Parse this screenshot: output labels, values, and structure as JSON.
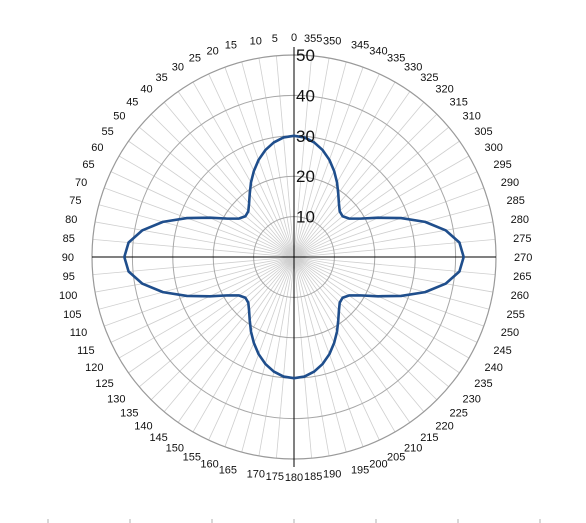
{
  "chart_data": {
    "type": "polar-line",
    "title": "",
    "angle_direction": "counterclockwise",
    "zero_direction": "top",
    "angle_step_deg": 5,
    "angle_labels": [
      "0",
      "5",
      "10",
      "15",
      "20",
      "25",
      "30",
      "35",
      "40",
      "45",
      "50",
      "55",
      "60",
      "65",
      "70",
      "75",
      "80",
      "85",
      "90",
      "95",
      "100",
      "105",
      "110",
      "115",
      "120",
      "125",
      "130",
      "135",
      "140",
      "145",
      "150",
      "155",
      "160",
      "165",
      "170",
      "175",
      "180",
      "185",
      "190",
      "195",
      "200",
      "205",
      "210",
      "215",
      "220",
      "225",
      "230",
      "235",
      "240",
      "245",
      "250",
      "255",
      "260",
      "265",
      "270",
      "275",
      "280",
      "285",
      "290",
      "295",
      "300",
      "305",
      "310",
      "315",
      "320",
      "325",
      "330",
      "335",
      "340",
      "345",
      "350",
      "355"
    ],
    "radial_range": [
      0,
      50
    ],
    "radial_labels": [
      "10",
      "20",
      "30",
      "40",
      "50"
    ],
    "radial_ticks": [
      10,
      20,
      30,
      40,
      50
    ],
    "grid": true,
    "legend": "none",
    "series": [
      {
        "color": "#1f4e8c",
        "theta": [
          0,
          5,
          10,
          15,
          20,
          25,
          30,
          35,
          40,
          45,
          50,
          55,
          60,
          65,
          70,
          75,
          80,
          85,
          90,
          95,
          100,
          105,
          110,
          115,
          120,
          125,
          130,
          135,
          140,
          145,
          150,
          155,
          160,
          165,
          170,
          175,
          180,
          185,
          190,
          195,
          200,
          205,
          210,
          215,
          220,
          225,
          230,
          235,
          240,
          245,
          250,
          255,
          260,
          265,
          270,
          275,
          280,
          285,
          290,
          295,
          300,
          305,
          310,
          315,
          320,
          325,
          330,
          335,
          340,
          345,
          350,
          355,
          360
        ],
        "r": [
          30.0,
          29.7,
          28.8,
          27.4,
          25.6,
          23.5,
          21.3,
          19.1,
          17.3,
          16.0,
          15.7,
          16.6,
          19.0,
          23.0,
          28.2,
          33.6,
          38.1,
          41.1,
          42.0,
          41.1,
          38.1,
          33.6,
          28.2,
          23.0,
          19.0,
          16.6,
          15.7,
          16.0,
          17.3,
          19.1,
          21.3,
          23.5,
          25.6,
          27.4,
          28.8,
          29.7,
          30.0,
          29.7,
          28.8,
          27.4,
          25.6,
          23.5,
          21.3,
          19.1,
          17.3,
          16.0,
          15.7,
          16.6,
          19.0,
          23.0,
          28.2,
          33.6,
          38.1,
          41.1,
          42.0,
          41.1,
          38.1,
          33.6,
          28.2,
          23.0,
          19.0,
          16.6,
          15.7,
          16.0,
          17.3,
          19.1,
          21.3,
          23.5,
          25.6,
          27.4,
          28.8,
          29.7,
          30.0
        ]
      }
    ]
  }
}
